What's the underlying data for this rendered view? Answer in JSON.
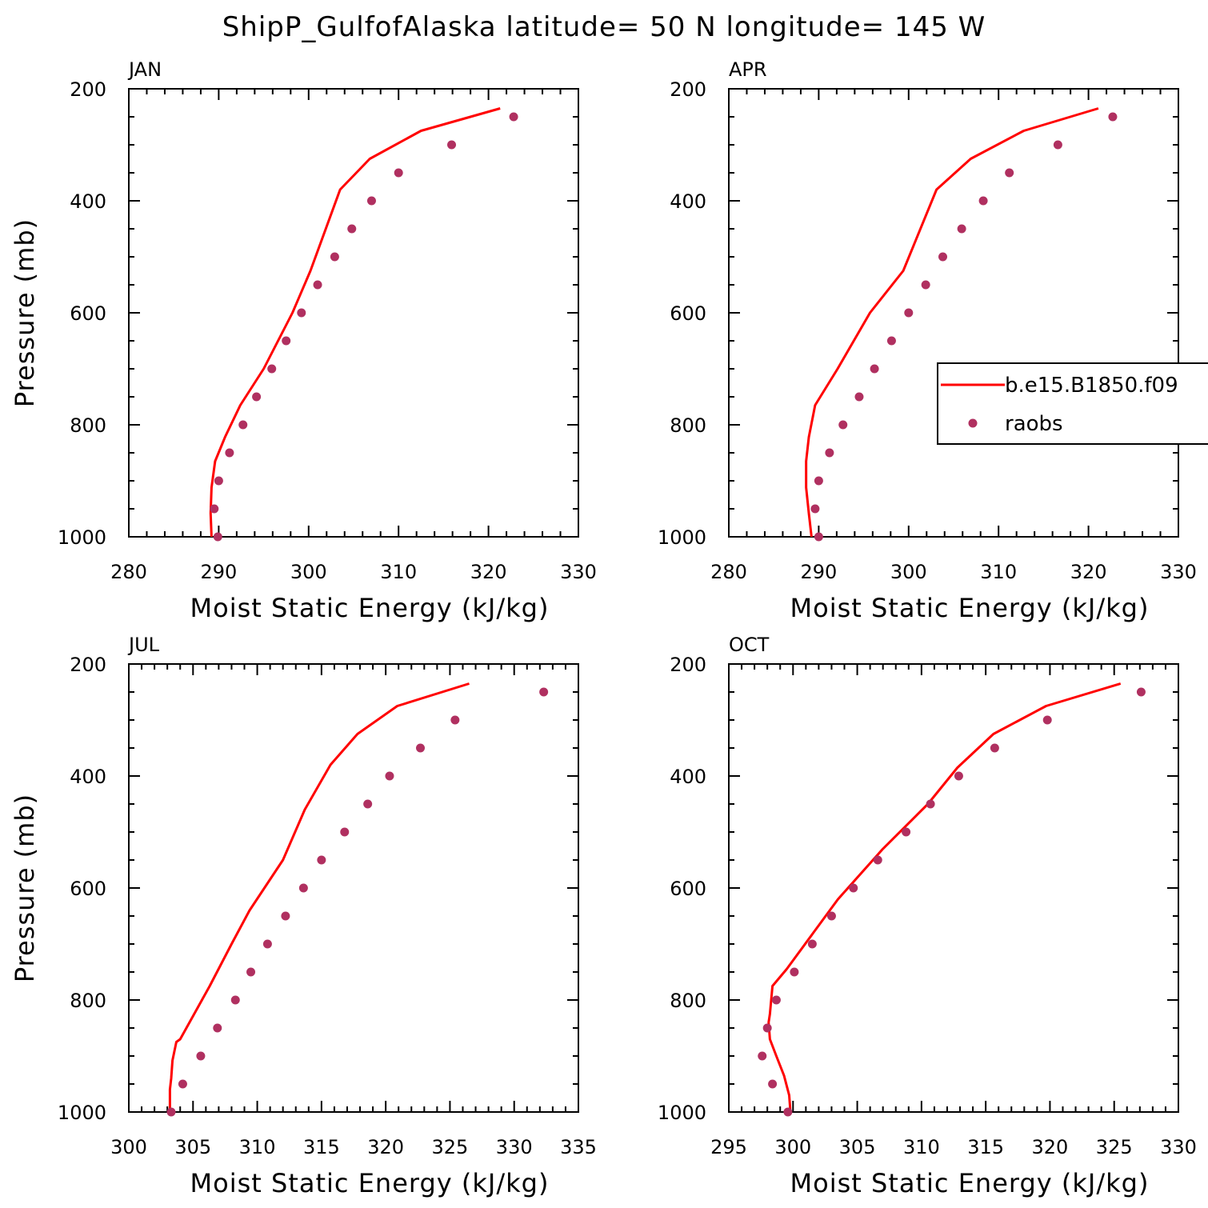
{
  "title": "ShipP_GulfofAlaska  latitude= 50 N longitude= 145 W",
  "colors": {
    "model": "#ff0000",
    "obs": "#b03060"
  },
  "legend": {
    "entries": [
      {
        "label": "b.e15.B1850.f09",
        "style": "line"
      },
      {
        "label": "raobs",
        "style": "marker"
      }
    ]
  },
  "chart_data": [
    {
      "type": "line",
      "panel_label": "JAN",
      "xlabel": "Moist Static Energy (kJ/kg)",
      "ylabel": "Pressure (mb)",
      "xlim": [
        280,
        330
      ],
      "ylim": [
        1000,
        200
      ],
      "xticks": [
        "280",
        "290",
        "300",
        "310",
        "320",
        "330"
      ],
      "yticks": [
        "200",
        "400",
        "600",
        "800",
        "1000"
      ],
      "series": [
        {
          "name": "b.e15.B1850.f09",
          "style": "line",
          "x": [
            289.2,
            289.1,
            289.2,
            289.6,
            290.7,
            292.4,
            295.0,
            298.2,
            300.2,
            303.5,
            306.8,
            312.5,
            321.3
          ],
          "y": [
            1000,
            958,
            912,
            865,
            822,
            765,
            700,
            600,
            525,
            380,
            325,
            275,
            235
          ]
        },
        {
          "name": "raobs",
          "style": "marker",
          "x": [
            289.9,
            289.5,
            290.0,
            291.2,
            292.7,
            294.2,
            295.9,
            297.5,
            299.2,
            301.0,
            302.9,
            304.8,
            307.0,
            310.0,
            315.9,
            322.8
          ],
          "y": [
            1000,
            950,
            900,
            850,
            800,
            750,
            700,
            650,
            600,
            550,
            500,
            450,
            400,
            350,
            300,
            250
          ]
        }
      ]
    },
    {
      "type": "line",
      "panel_label": "APR",
      "xlabel": "Moist Static Energy (kJ/kg)",
      "ylabel": "",
      "xlim": [
        280,
        330
      ],
      "ylim": [
        1000,
        200
      ],
      "xticks": [
        "280",
        "290",
        "300",
        "310",
        "320",
        "330"
      ],
      "yticks": [
        "200",
        "400",
        "600",
        "800",
        "1000"
      ],
      "series": [
        {
          "name": "b.e15.B1850.f09",
          "style": "line",
          "x": [
            289.2,
            288.9,
            288.6,
            288.6,
            288.9,
            289.6,
            292.1,
            295.7,
            299.4,
            303.1,
            306.9,
            312.8,
            321.1
          ],
          "y": [
            1000,
            958,
            912,
            865,
            822,
            765,
            700,
            600,
            525,
            380,
            325,
            275,
            235
          ]
        },
        {
          "name": "raobs",
          "style": "marker",
          "x": [
            290.0,
            289.6,
            290.0,
            291.2,
            292.7,
            294.5,
            296.2,
            298.1,
            300.0,
            301.9,
            303.8,
            305.9,
            308.3,
            311.2,
            316.6,
            322.7
          ],
          "y": [
            1000,
            950,
            900,
            850,
            800,
            750,
            700,
            650,
            600,
            550,
            500,
            450,
            400,
            350,
            300,
            250
          ]
        }
      ]
    },
    {
      "type": "line",
      "panel_label": "JUL",
      "xlabel": "Moist Static Energy (kJ/kg)",
      "ylabel": "Pressure (mb)",
      "xlim": [
        300,
        335
      ],
      "ylim": [
        1000,
        200
      ],
      "xticks": [
        "300",
        "305",
        "310",
        "315",
        "320",
        "325",
        "330",
        "335"
      ],
      "yticks": [
        "200",
        "400",
        "600",
        "800",
        "1000"
      ],
      "series": [
        {
          "name": "b.e15.B1850.f09",
          "style": "line",
          "x": [
            303.2,
            303.2,
            303.3,
            303.4,
            303.7,
            304.0,
            306.3,
            308.0,
            309.4,
            312.0,
            313.7,
            315.7,
            317.8,
            320.9,
            326.5
          ],
          "y": [
            1000,
            960,
            940,
            908,
            875,
            870,
            775,
            700,
            640,
            550,
            460,
            380,
            325,
            275,
            235
          ]
        },
        {
          "name": "raobs",
          "style": "marker",
          "x": [
            303.3,
            304.2,
            305.6,
            306.9,
            308.3,
            309.5,
            310.8,
            312.2,
            313.6,
            315.0,
            316.8,
            318.6,
            320.3,
            322.7,
            325.4,
            332.3
          ],
          "y": [
            1000,
            950,
            900,
            850,
            800,
            750,
            700,
            650,
            600,
            550,
            500,
            450,
            400,
            350,
            300,
            250
          ]
        }
      ]
    },
    {
      "type": "line",
      "panel_label": "OCT",
      "xlabel": "Moist Static Energy (kJ/kg)",
      "ylabel": "",
      "xlim": [
        295,
        330
      ],
      "ylim": [
        1000,
        200
      ],
      "xticks": [
        "295",
        "300",
        "305",
        "310",
        "315",
        "320",
        "325",
        "330"
      ],
      "yticks": [
        "200",
        "400",
        "600",
        "800",
        "1000"
      ],
      "series": [
        {
          "name": "b.e15.B1850.f09",
          "style": "line",
          "x": [
            299.8,
            299.7,
            299.3,
            298.7,
            298.2,
            298.1,
            298.2,
            298.4,
            299.5,
            303.5,
            307.0,
            310.5,
            312.8,
            315.6,
            319.7,
            325.5
          ],
          "y": [
            1000,
            970,
            935,
            900,
            870,
            840,
            825,
            775,
            745,
            620,
            530,
            450,
            385,
            325,
            275,
            235
          ]
        },
        {
          "name": "raobs",
          "style": "marker",
          "x": [
            299.6,
            298.4,
            297.6,
            298.0,
            298.7,
            300.1,
            301.5,
            303.0,
            304.7,
            306.6,
            308.8,
            310.7,
            312.9,
            315.7,
            319.8,
            327.1
          ],
          "y": [
            1000,
            950,
            900,
            850,
            800,
            750,
            700,
            650,
            600,
            550,
            500,
            450,
            400,
            350,
            300,
            250
          ]
        }
      ]
    }
  ]
}
